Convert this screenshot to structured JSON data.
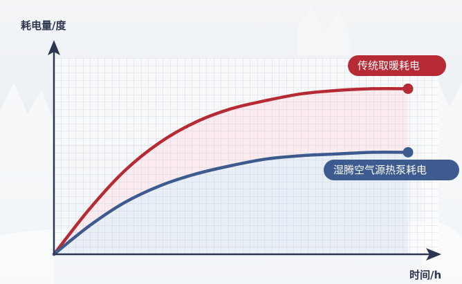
{
  "chart_data": {
    "type": "line",
    "xlabel": "时间/h",
    "ylabel": "耗电量/度",
    "xlim": [
      0,
      100
    ],
    "ylim": [
      0,
      100
    ],
    "grid": true,
    "legend": "inline-labels-at-line-ends",
    "series": [
      {
        "name": "传统取暖耗电",
        "color": "#b52a33",
        "fill": "#fbe9ec",
        "x": [
          0,
          10,
          20,
          30,
          40,
          50,
          60,
          70,
          80,
          90,
          100
        ],
        "y": [
          0,
          27,
          50,
          67,
          79,
          87,
          92,
          96,
          98,
          99,
          99
        ]
      },
      {
        "name": "湿腾空气源热泵耗电",
        "color": "#3e5b8f",
        "fill": "#e6f0f8",
        "x": [
          0,
          10,
          20,
          30,
          40,
          50,
          60,
          70,
          80,
          90,
          100
        ],
        "y": [
          0,
          17,
          31,
          41,
          48,
          53,
          57,
          59,
          60,
          61,
          61
        ]
      }
    ]
  }
}
